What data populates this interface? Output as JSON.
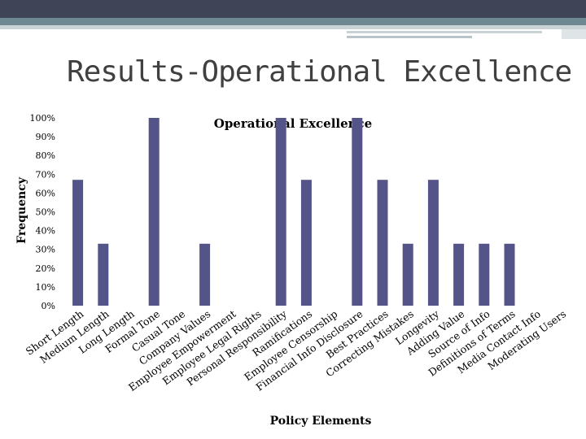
{
  "slide": {
    "title": "Results-Operational Excellence"
  },
  "colors": {
    "bar": "#545488",
    "text": "#000000"
  },
  "chart_data": {
    "type": "bar",
    "title": "Operational Excellence",
    "xlabel": "Policy Elements",
    "ylabel": "Frequency",
    "ylim": [
      0,
      100
    ],
    "yticks": [
      0,
      10,
      20,
      30,
      40,
      50,
      60,
      70,
      80,
      90,
      100
    ],
    "ytick_format": "percent",
    "grid": false,
    "legend": "none",
    "categories": [
      "Short Length",
      "Medium Length",
      "Long Length",
      "Formal Tone",
      "Casual Tone",
      "Company Values",
      "Employee Empowerment",
      "Employee Legal Rights",
      "Personal Responsibility",
      "Ramifications",
      "Employee Censorship",
      "Financial Info Disclosure",
      "Best Practices",
      "Correcting Mistakes",
      "Longevity",
      "Adding Value",
      "Source of Info",
      "Definitions of Terms",
      "Media Contact Info",
      "Moderating Users"
    ],
    "values": [
      67,
      33,
      0,
      100,
      0,
      33,
      0,
      0,
      100,
      67,
      0,
      100,
      67,
      33,
      67,
      33,
      33,
      33,
      0,
      0
    ]
  }
}
